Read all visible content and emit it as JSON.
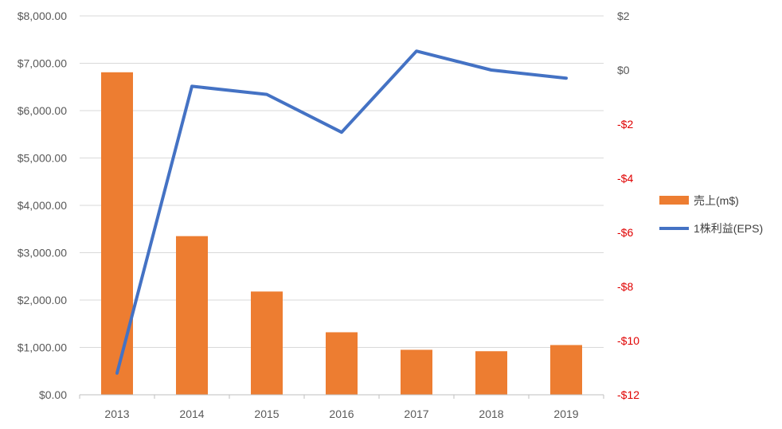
{
  "chart_data": {
    "type": "bar+line",
    "categories": [
      "2013",
      "2014",
      "2015",
      "2016",
      "2017",
      "2018",
      "2019"
    ],
    "series": [
      {
        "name": "売上(m$)",
        "type": "bar",
        "axis": "left",
        "color": "#ED7D31",
        "values": [
          6810,
          3350,
          2180,
          1320,
          950,
          920,
          1050
        ]
      },
      {
        "name": "1株利益(EPS)",
        "type": "line",
        "axis": "right",
        "color": "#4472C4",
        "values": [
          -11.2,
          -0.6,
          -0.9,
          -2.3,
          0.7,
          0.0,
          -0.3
        ]
      }
    ],
    "y_left": {
      "ylim": [
        0,
        8000
      ],
      "ticks": [
        0,
        1000,
        2000,
        3000,
        4000,
        5000,
        6000,
        7000,
        8000
      ],
      "tick_labels": [
        "$0.00",
        "$1,000.00",
        "$2,000.00",
        "$3,000.00",
        "$4,000.00",
        "$5,000.00",
        "$6,000.00",
        "$7,000.00",
        "$8,000.00"
      ]
    },
    "y_right": {
      "ylim": [
        -12,
        2
      ],
      "ticks": [
        -12,
        -10,
        -8,
        -6,
        -4,
        -2,
        0,
        2
      ],
      "tick_labels": [
        "-$12",
        "-$10",
        "-$8",
        "-$6",
        "-$4",
        "-$2",
        "$0",
        "$2"
      ],
      "negative_color": "#E00000"
    },
    "grid": true,
    "legend": "right"
  }
}
